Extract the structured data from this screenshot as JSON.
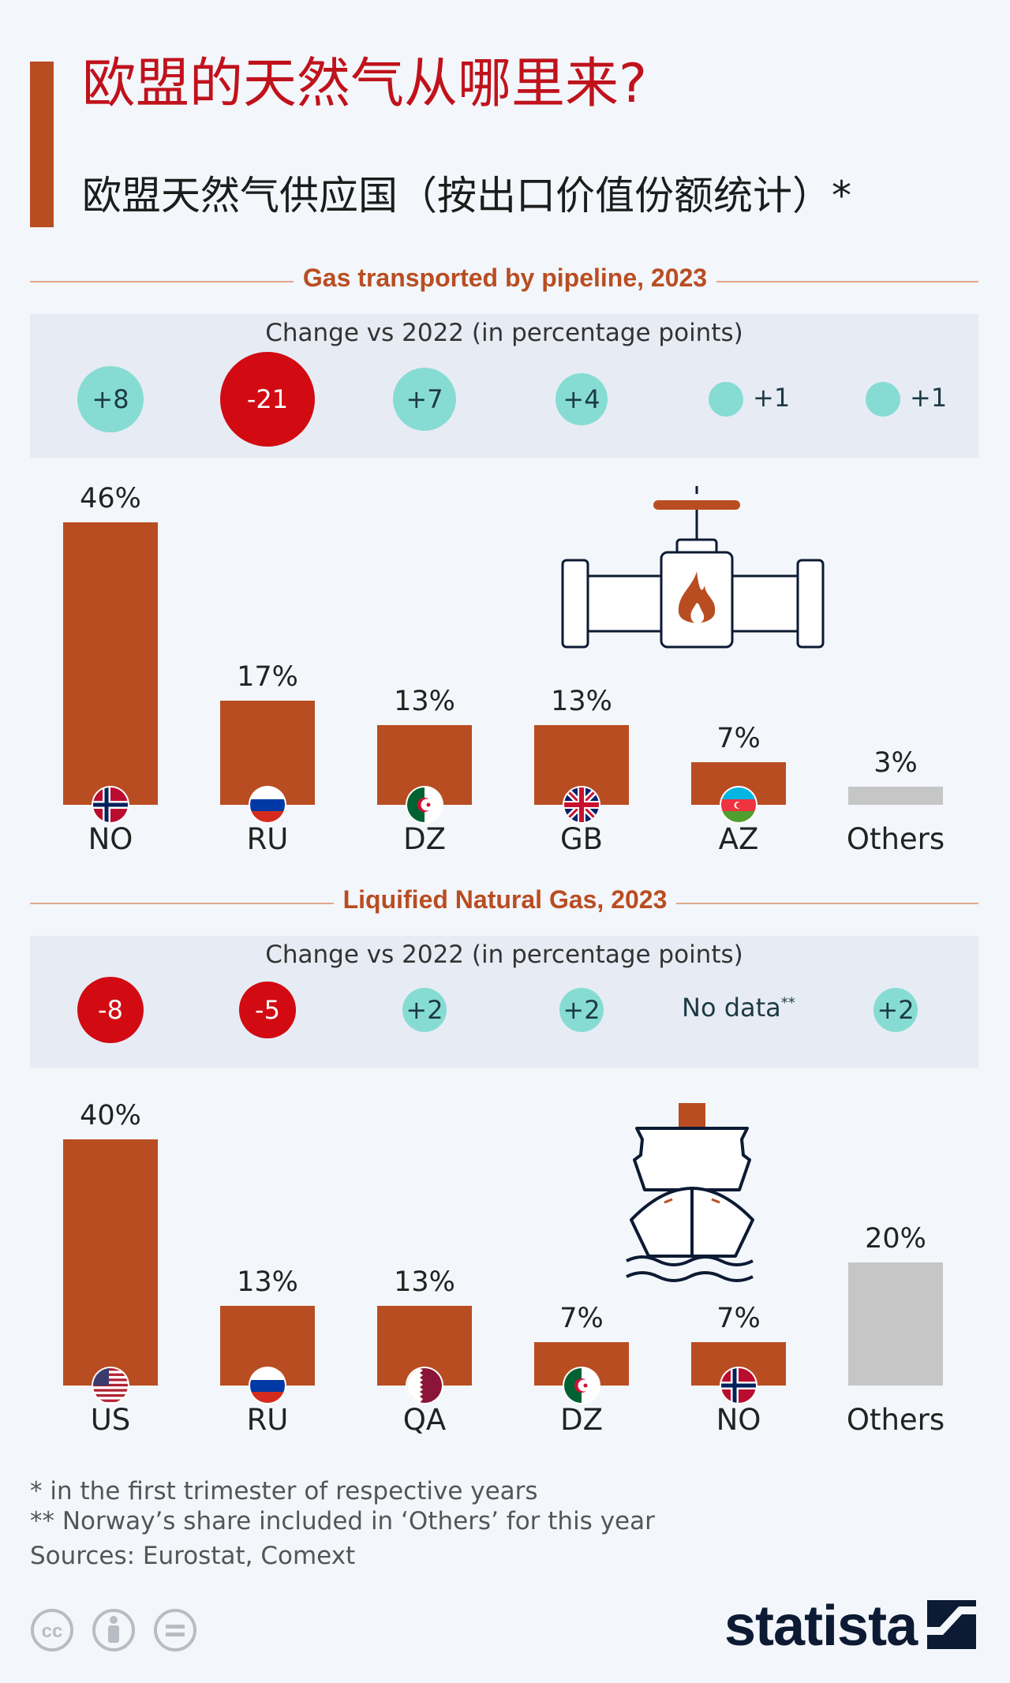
{
  "title": "欧盟的天然气从哪里来?",
  "subtitle": "欧盟天然气供应国（按出口价值份额统计）*",
  "chart_data": [
    {
      "type": "bar",
      "title": "Gas transported by pipeline, 2023",
      "change_label": "Change vs 2022 (in percentage points)",
      "categories": [
        "NO",
        "RU",
        "DZ",
        "GB",
        "AZ",
        "Others"
      ],
      "values": [
        46,
        17,
        13,
        13,
        7,
        3
      ],
      "value_labels": [
        "46%",
        "17%",
        "13%",
        "13%",
        "7%",
        "3%"
      ],
      "change_values": [
        8,
        -21,
        7,
        4,
        1,
        1
      ],
      "change_labels": [
        "+8",
        "-21",
        "+7",
        "+4",
        "+1",
        "+1"
      ],
      "ylim": [
        0,
        46
      ]
    },
    {
      "type": "bar",
      "title": "Liquified Natural Gas, 2023",
      "change_label": "Change vs 2022 (in percentage points)",
      "categories": [
        "US",
        "RU",
        "QA",
        "DZ",
        "NO",
        "Others"
      ],
      "values": [
        40,
        13,
        13,
        7,
        7,
        20
      ],
      "value_labels": [
        "40%",
        "13%",
        "13%",
        "7%",
        "7%",
        "20%"
      ],
      "change_values": [
        -8,
        -5,
        2,
        2,
        null,
        2
      ],
      "change_labels": [
        "-8",
        "-5",
        "+2",
        "+2",
        "No data",
        "+2"
      ],
      "ylim": [
        0,
        40
      ]
    }
  ],
  "nodata_mark": "**",
  "footnotes": {
    "note1": "*   in the first trimester of respective years",
    "note2": "** Norway’s share included in ‘Others’ for this year",
    "sources": "Sources: Eurostat, Comext"
  },
  "brand": "statista",
  "colors": {
    "bar": "#b94d22",
    "others_bar": "#c6c6c6",
    "positive_change": "#86dcd3",
    "negative_change": "#d20a12",
    "title": "#c0121c"
  },
  "icons": {
    "pipeline": "gas-pipeline-valve-icon",
    "lng": "lng-tanker-ship-icon",
    "licenses": [
      "cc-icon",
      "by-icon",
      "nd-icon"
    ]
  }
}
